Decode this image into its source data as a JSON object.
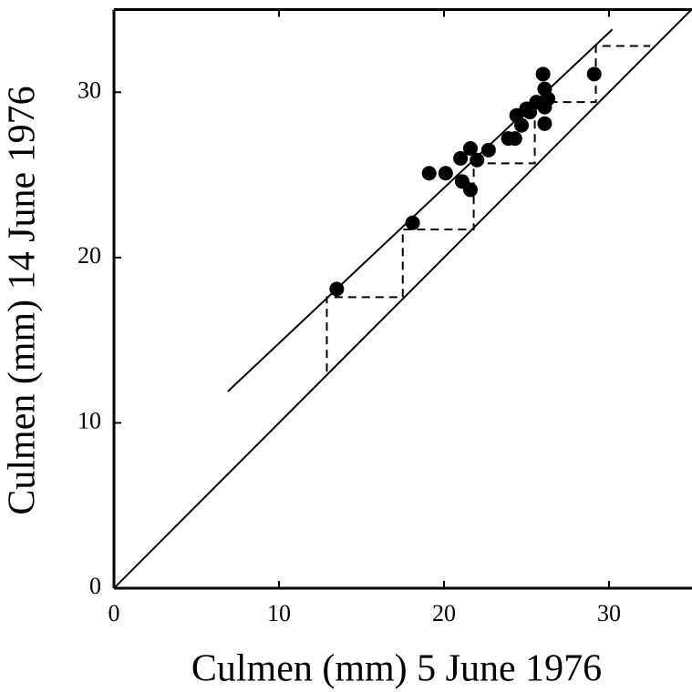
{
  "chart_data": {
    "type": "scatter",
    "x_label": "Culmen (mm)  5 June 1976",
    "y_label": "Culmen (mm) 14 June 1976",
    "xlim": [
      0,
      35
    ],
    "ylim": [
      0,
      35
    ],
    "xticks": [
      0,
      10,
      20,
      30
    ],
    "yticks": [
      0,
      10,
      20,
      30
    ],
    "grid": false,
    "series": [
      {
        "type": "scatter",
        "color": "#000000",
        "x": [
          13.5,
          18.1,
          19.1,
          20.1,
          21.0,
          21.1,
          21.6,
          21.6,
          22.0,
          22.7,
          23.9,
          24.3,
          24.4,
          24.7,
          25.0,
          25.2,
          25.6,
          26.0,
          26.1,
          26.1,
          26.1,
          26.3,
          29.1
        ],
        "y": [
          18.1,
          22.1,
          25.1,
          25.1,
          26.0,
          24.6,
          24.1,
          26.6,
          25.9,
          26.5,
          27.2,
          27.2,
          28.6,
          28.0,
          29.0,
          28.8,
          29.4,
          31.1,
          30.2,
          28.1,
          29.1,
          29.6,
          31.1
        ]
      },
      {
        "type": "line",
        "color": "#000000",
        "dashed": false,
        "x": [
          0,
          35
        ],
        "y": [
          0,
          35
        ]
      },
      {
        "type": "line",
        "color": "#000000",
        "dashed": false,
        "x": [
          6.9,
          30.2
        ],
        "y": [
          11.9,
          33.8
        ]
      },
      {
        "type": "line",
        "color": "#000000",
        "dashed": true,
        "x": [
          12.9,
          12.9,
          17.5,
          17.5,
          21.8,
          21.8,
          25.5,
          25.5,
          29.2,
          29.2,
          32.5
        ],
        "y": [
          13.1,
          17.6,
          17.6,
          21.7,
          21.7,
          25.7,
          25.7,
          29.4,
          29.4,
          32.8,
          32.8
        ]
      }
    ]
  }
}
